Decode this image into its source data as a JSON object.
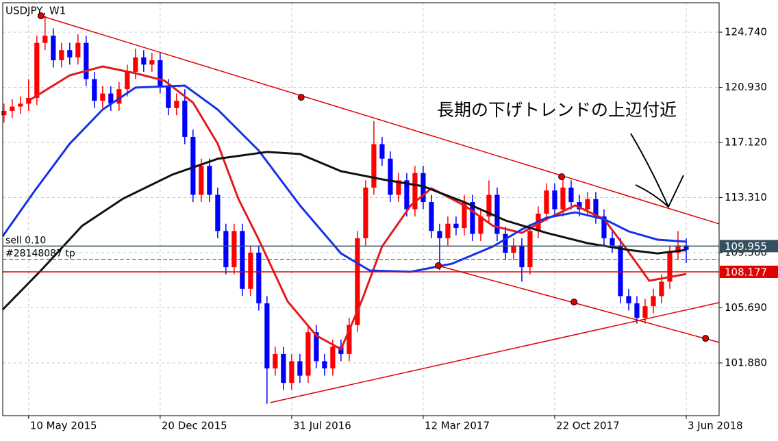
{
  "chart_data": {
    "type": "candlestick",
    "title": "USDJPY, W1",
    "annotation": "長期の下げトレンドの上辺付近",
    "up_color": "#ff0000",
    "down_color": "#0000ff",
    "xlim": [
      -6.3,
      168
    ],
    "ylim": [
      98.236,
      126.775
    ],
    "grid": true,
    "xticks": [
      {
        "value": 0,
        "label": "10 May 2015"
      },
      {
        "value": 32,
        "label": "20 Dec 2015"
      },
      {
        "value": 64,
        "label": "31 Jul 2016"
      },
      {
        "value": 96,
        "label": "12 Mar 2017"
      },
      {
        "value": 128,
        "label": "22 Oct 2017"
      },
      {
        "value": 160,
        "label": "3 Jun 2018"
      }
    ],
    "yticks": [
      {
        "value": 124.74,
        "label": "124.740"
      },
      {
        "value": 120.93,
        "label": "120.930"
      },
      {
        "value": 117.12,
        "label": "117.120"
      },
      {
        "value": 113.31,
        "label": "113.310"
      },
      {
        "value": 109.5,
        "label": "109.500"
      },
      {
        "value": 105.69,
        "label": "105.690"
      },
      {
        "value": 101.88,
        "label": "101.880"
      }
    ],
    "candles": [
      [
        -6,
        119.0,
        119.8,
        118.5,
        119.3
      ],
      [
        -4,
        119.3,
        120.1,
        118.8,
        119.6
      ],
      [
        -2,
        119.6,
        120.3,
        119.1,
        119.8
      ],
      [
        0,
        119.8,
        121.5,
        119.3,
        120.2
      ],
      [
        2,
        120.2,
        124.5,
        119.7,
        124.0
      ],
      [
        4,
        124.0,
        125.87,
        123.5,
        124.5
      ],
      [
        6,
        124.5,
        125.0,
        122.3,
        122.8
      ],
      [
        8,
        122.8,
        124.0,
        122.3,
        123.5
      ],
      [
        10,
        123.5,
        124.0,
        122.5,
        123.0
      ],
      [
        12,
        123.0,
        124.6,
        122.5,
        124.0
      ],
      [
        14,
        124.0,
        124.5,
        121.0,
        121.5
      ],
      [
        16,
        121.5,
        122.0,
        119.5,
        120.0
      ],
      [
        18,
        120.0,
        121.0,
        119.5,
        120.5
      ],
      [
        20,
        120.5,
        121.0,
        119.3,
        119.8
      ],
      [
        22,
        119.8,
        121.3,
        119.3,
        120.8
      ],
      [
        24,
        120.8,
        122.5,
        120.3,
        122.0
      ],
      [
        26,
        122.0,
        123.6,
        121.5,
        123.0
      ],
      [
        28,
        123.0,
        123.5,
        122.0,
        122.5
      ],
      [
        30,
        122.5,
        123.3,
        122.0,
        122.8
      ],
      [
        32,
        122.8,
        123.3,
        120.5,
        121.0
      ],
      [
        34,
        121.0,
        121.5,
        119.0,
        119.5
      ],
      [
        36,
        119.5,
        120.5,
        119.0,
        120.0
      ],
      [
        38,
        120.0,
        120.8,
        117.0,
        117.5
      ],
      [
        40,
        117.5,
        118.0,
        113.0,
        113.5
      ],
      [
        42,
        113.5,
        116.0,
        113.0,
        115.5
      ],
      [
        44,
        115.5,
        116.0,
        113.0,
        113.5
      ],
      [
        46,
        113.5,
        114.0,
        110.5,
        111.0
      ],
      [
        48,
        111.0,
        111.5,
        108.0,
        108.5
      ],
      [
        50,
        108.5,
        111.5,
        108.0,
        111.0
      ],
      [
        52,
        111.0,
        111.5,
        106.5,
        107.0
      ],
      [
        54,
        107.0,
        110.0,
        106.5,
        109.5
      ],
      [
        56,
        109.5,
        110.0,
        105.5,
        106.0
      ],
      [
        58,
        106.0,
        106.5,
        99.05,
        101.5
      ],
      [
        60,
        101.5,
        103.0,
        101.0,
        102.5
      ],
      [
        62,
        102.5,
        103.0,
        100.0,
        100.5
      ],
      [
        64,
        100.5,
        102.5,
        100.0,
        102.0
      ],
      [
        66,
        102.0,
        102.5,
        100.5,
        101.0
      ],
      [
        68,
        101.0,
        104.5,
        100.5,
        104.0
      ],
      [
        70,
        104.0,
        104.5,
        101.5,
        102.0
      ],
      [
        72,
        102.0,
        102.5,
        101.0,
        101.5
      ],
      [
        74,
        101.5,
        103.5,
        101.0,
        103.0
      ],
      [
        76,
        103.0,
        103.5,
        102.0,
        102.5
      ],
      [
        78,
        102.5,
        105.0,
        102.0,
        104.5
      ],
      [
        80,
        104.5,
        111.0,
        104.0,
        110.5
      ],
      [
        82,
        110.5,
        114.5,
        110.0,
        114.0
      ],
      [
        84,
        114.0,
        118.6,
        113.5,
        117.0
      ],
      [
        86,
        117.0,
        117.5,
        115.5,
        116.0
      ],
      [
        88,
        116.0,
        116.5,
        113.0,
        113.5
      ],
      [
        90,
        113.5,
        115.0,
        113.0,
        114.5
      ],
      [
        92,
        114.5,
        115.0,
        112.0,
        112.5
      ],
      [
        94,
        112.5,
        115.5,
        112.0,
        115.0
      ],
      [
        96,
        115.0,
        115.5,
        112.5,
        113.0
      ],
      [
        98,
        113.0,
        113.5,
        110.5,
        111.0
      ],
      [
        100,
        111.0,
        111.5,
        108.3,
        110.5
      ],
      [
        102,
        110.5,
        112.0,
        110.0,
        111.5
      ],
      [
        104,
        111.5,
        112.0,
        110.7,
        111.2
      ],
      [
        106,
        111.2,
        113.5,
        110.7,
        113.0
      ],
      [
        108,
        113.0,
        113.5,
        110.3,
        110.8
      ],
      [
        110,
        110.8,
        112.5,
        110.3,
        112.0
      ],
      [
        112,
        112.0,
        114.5,
        111.5,
        113.5
      ],
      [
        114,
        113.5,
        114.0,
        110.3,
        110.8
      ],
      [
        116,
        110.8,
        111.3,
        109.0,
        109.5
      ],
      [
        118,
        109.5,
        110.5,
        109.0,
        110.0
      ],
      [
        120,
        110.0,
        110.5,
        107.5,
        108.5
      ],
      [
        122,
        108.5,
        111.5,
        108.0,
        111.0
      ],
      [
        124,
        111.0,
        112.7,
        110.5,
        112.2
      ],
      [
        126,
        112.2,
        114.3,
        111.7,
        113.8
      ],
      [
        128,
        113.8,
        114.3,
        112.0,
        112.5
      ],
      [
        130,
        112.5,
        114.7,
        112.0,
        114.0
      ],
      [
        132,
        114.0,
        114.5,
        112.5,
        113.0
      ],
      [
        134,
        113.0,
        113.5,
        112.0,
        112.5
      ],
      [
        136,
        112.5,
        113.7,
        112.0,
        113.2
      ],
      [
        138,
        113.2,
        113.7,
        111.5,
        112.0
      ],
      [
        140,
        112.0,
        112.5,
        110.0,
        110.5
      ],
      [
        142,
        110.5,
        111.0,
        109.5,
        110.0
      ],
      [
        144,
        110.0,
        110.5,
        106.0,
        106.5
      ],
      [
        146,
        106.5,
        107.0,
        105.5,
        106.0
      ],
      [
        148,
        106.0,
        106.5,
        104.6,
        105.0
      ],
      [
        150,
        105.0,
        106.3,
        104.6,
        105.8
      ],
      [
        152,
        105.8,
        107.0,
        105.3,
        106.5
      ],
      [
        154,
        106.5,
        108.0,
        106.0,
        107.5
      ],
      [
        156,
        107.5,
        110.0,
        107.0,
        109.5
      ],
      [
        158,
        109.5,
        111.0,
        109.0,
        110.0
      ],
      [
        160,
        110.0,
        110.5,
        108.8,
        109.7
      ]
    ],
    "lines": [
      {
        "color": "#e31a1c",
        "x": [
          0,
          10,
          18,
          26,
          33,
          40,
          46,
          51,
          56,
          63,
          70,
          76,
          81,
          86,
          93,
          98,
          106,
          113,
          120,
          126,
          133,
          140,
          145,
          151,
          160
        ],
        "values": [
          120.0,
          121.76,
          122.37,
          121.9,
          121.4,
          119.87,
          117.03,
          113.24,
          110.4,
          106.14,
          103.77,
          102.83,
          106.14,
          109.93,
          112.77,
          113.95,
          112.77,
          111.35,
          110.87,
          111.82,
          112.77,
          111.82,
          109.93,
          107.56,
          108.03
        ]
      },
      {
        "color": "#1531e8",
        "x": [
          -6.3,
          1.3,
          10,
          18,
          26,
          38,
          46,
          56,
          66,
          76,
          83,
          93,
          103,
          113,
          120,
          126,
          133,
          140,
          146,
          153,
          160
        ],
        "values": [
          110.64,
          113.71,
          117.03,
          119.39,
          120.91,
          121.05,
          119.39,
          116.55,
          112.77,
          109.45,
          108.27,
          108.18,
          108.74,
          109.93,
          111.11,
          111.92,
          112.29,
          111.82,
          110.97,
          110.4,
          110.26
        ]
      },
      {
        "color": "#111111",
        "x": [
          -6.3,
          3,
          13,
          23,
          35,
          46,
          58,
          66,
          76,
          86,
          96,
          106,
          116,
          126,
          136,
          146,
          153,
          160
        ],
        "values": [
          105.57,
          108.27,
          111.35,
          113.24,
          114.9,
          115.99,
          116.46,
          116.32,
          115.13,
          114.57,
          114.09,
          113.0,
          111.73,
          110.87,
          110.16,
          109.69,
          109.45,
          109.69
        ]
      }
    ],
    "trendlines": [
      {
        "color": "#e00000",
        "x": [
          3,
          168
        ],
        "values": [
          125.87,
          111.49
        ]
      },
      {
        "color": "#e00000",
        "x": [
          99.7,
          168
        ],
        "values": [
          108.6,
          103.3
        ]
      },
      {
        "color": "#e00000",
        "x": [
          58.8,
          168
        ],
        "values": [
          99.14,
          106.05
        ]
      }
    ],
    "points": {
      "color": "#e00000",
      "x": [
        3,
        66.3,
        129.7,
        99.7,
        132.7,
        164.7
      ],
      "values": [
        125.87,
        120.24,
        114.75,
        108.6,
        106.09,
        103.58
      ]
    },
    "orders": [
      {
        "label": "sell 0.10",
        "price": 109.955,
        "color": "#2f6f6f"
      },
      {
        "label": "#28148087 tp",
        "price": 109.05,
        "color": "#e00000"
      }
    ],
    "price_lines": [
      {
        "value": 109.955,
        "color": "#34505e"
      },
      {
        "value": 108.177,
        "color": "#e00000"
      }
    ]
  }
}
